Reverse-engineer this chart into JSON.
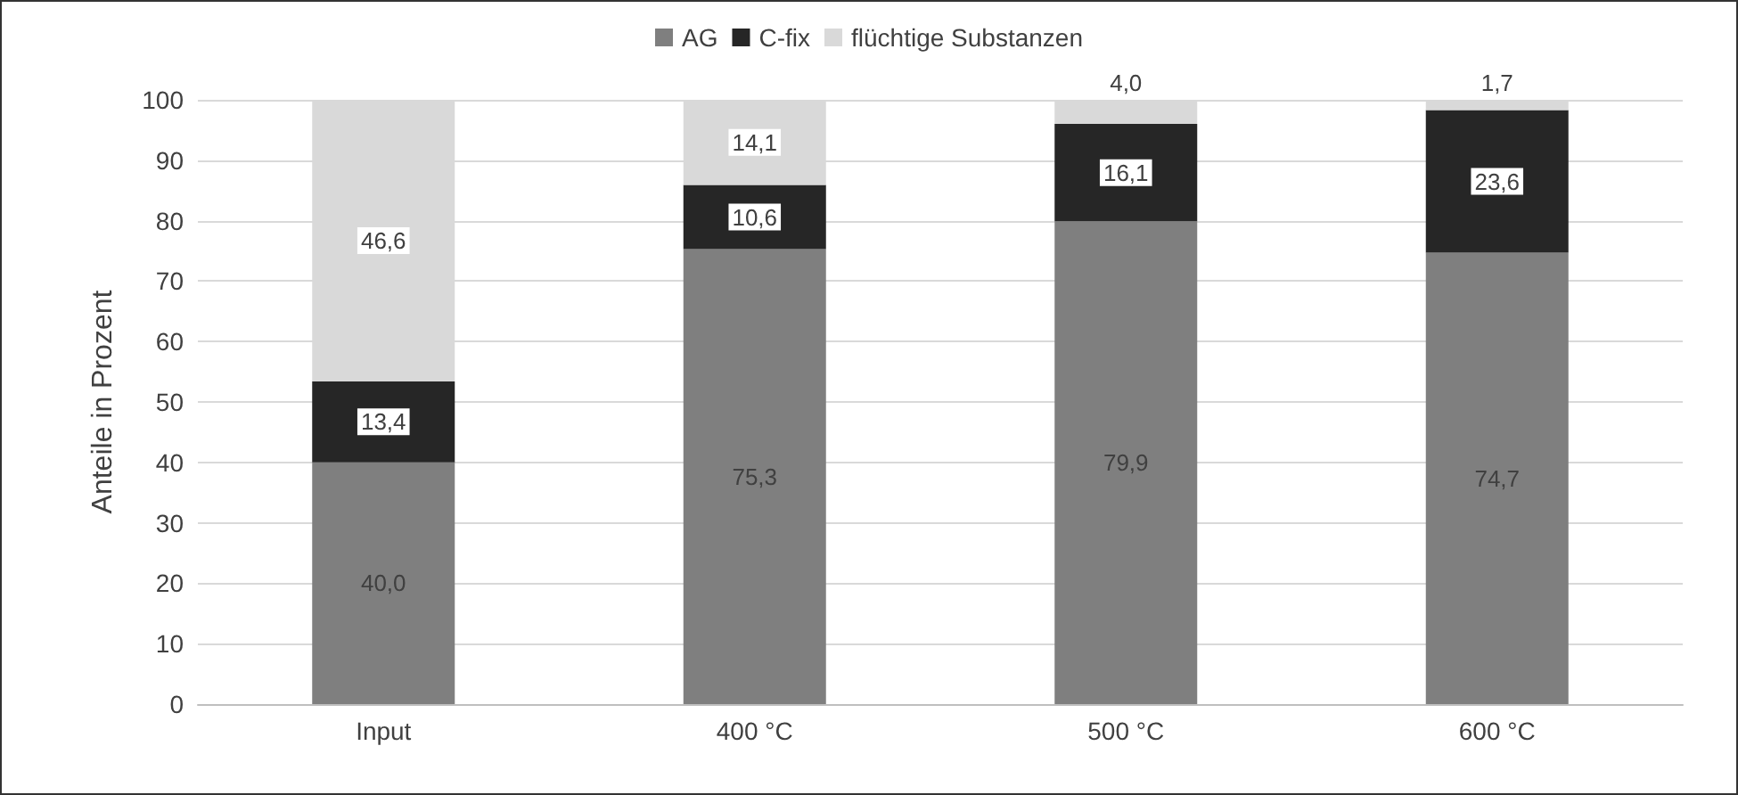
{
  "chart_data": {
    "type": "bar",
    "stacked": true,
    "ylabel": "Anteile in Prozent",
    "categories": [
      "Input",
      "400 °C",
      "500 °C",
      "600 °C"
    ],
    "series": [
      {
        "name": "AG",
        "color": "#7f7f7f",
        "values": [
          40.0,
          75.3,
          79.9,
          74.7
        ],
        "value_labels": [
          "40,0",
          "75,3",
          "79,9",
          "74,7"
        ]
      },
      {
        "name": "C-fix",
        "color": "#262626",
        "values": [
          13.4,
          10.6,
          16.1,
          23.6
        ],
        "value_labels": [
          "13,4",
          "10,6",
          "16,1",
          "23,6"
        ]
      },
      {
        "name": "flüchtige Substanzen",
        "color": "#d9d9d9",
        "values": [
          46.6,
          14.1,
          4.0,
          1.7
        ],
        "value_labels": [
          "46,6",
          "14,1",
          "4,0",
          "1,7"
        ]
      }
    ],
    "ylim": [
      0,
      100
    ],
    "yticks": [
      0,
      10,
      20,
      30,
      40,
      50,
      60,
      70,
      80,
      90,
      100
    ],
    "grid": "y",
    "legend": "top"
  }
}
